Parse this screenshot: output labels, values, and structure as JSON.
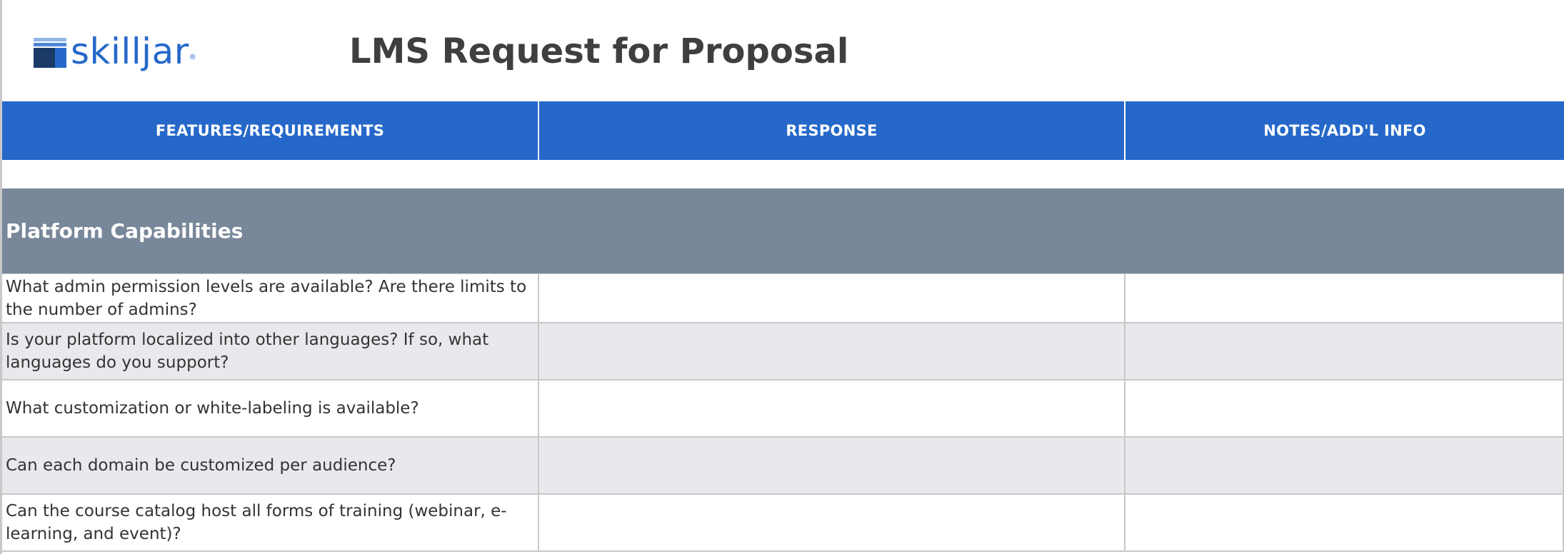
{
  "brand": {
    "logo_text": "skilljar",
    "logo_reg": "®",
    "logo_icon": "skilljar-logo-icon",
    "colors": {
      "brand_blue": "#2568c9",
      "logo_dark": "#1b3a66",
      "logo_light": "#8fb6e6"
    }
  },
  "document": {
    "title": "LMS Request for Proposal"
  },
  "table": {
    "headers": [
      "FEATURES/REQUIREMENTS",
      "RESPONSE",
      "NOTES/ADD'L INFO"
    ],
    "header_color": "#2568c9",
    "section": {
      "title": "Platform Capabilities",
      "color": "#788799"
    },
    "rows": [
      {
        "feature": "What admin permission levels are available? Are there limits to the number of admins?",
        "response": "",
        "notes": ""
      },
      {
        "feature": "Is your platform localized into other languages? If so, what languages do you support?",
        "response": "",
        "notes": ""
      },
      {
        "feature": "What customization or white-labeling is available?",
        "response": "",
        "notes": ""
      },
      {
        "feature": "Can each domain be customized per audience?",
        "response": "",
        "notes": ""
      },
      {
        "feature": "Can the course catalog host all forms of training (webinar, e-learning, and event)?",
        "response": "",
        "notes": ""
      }
    ]
  }
}
